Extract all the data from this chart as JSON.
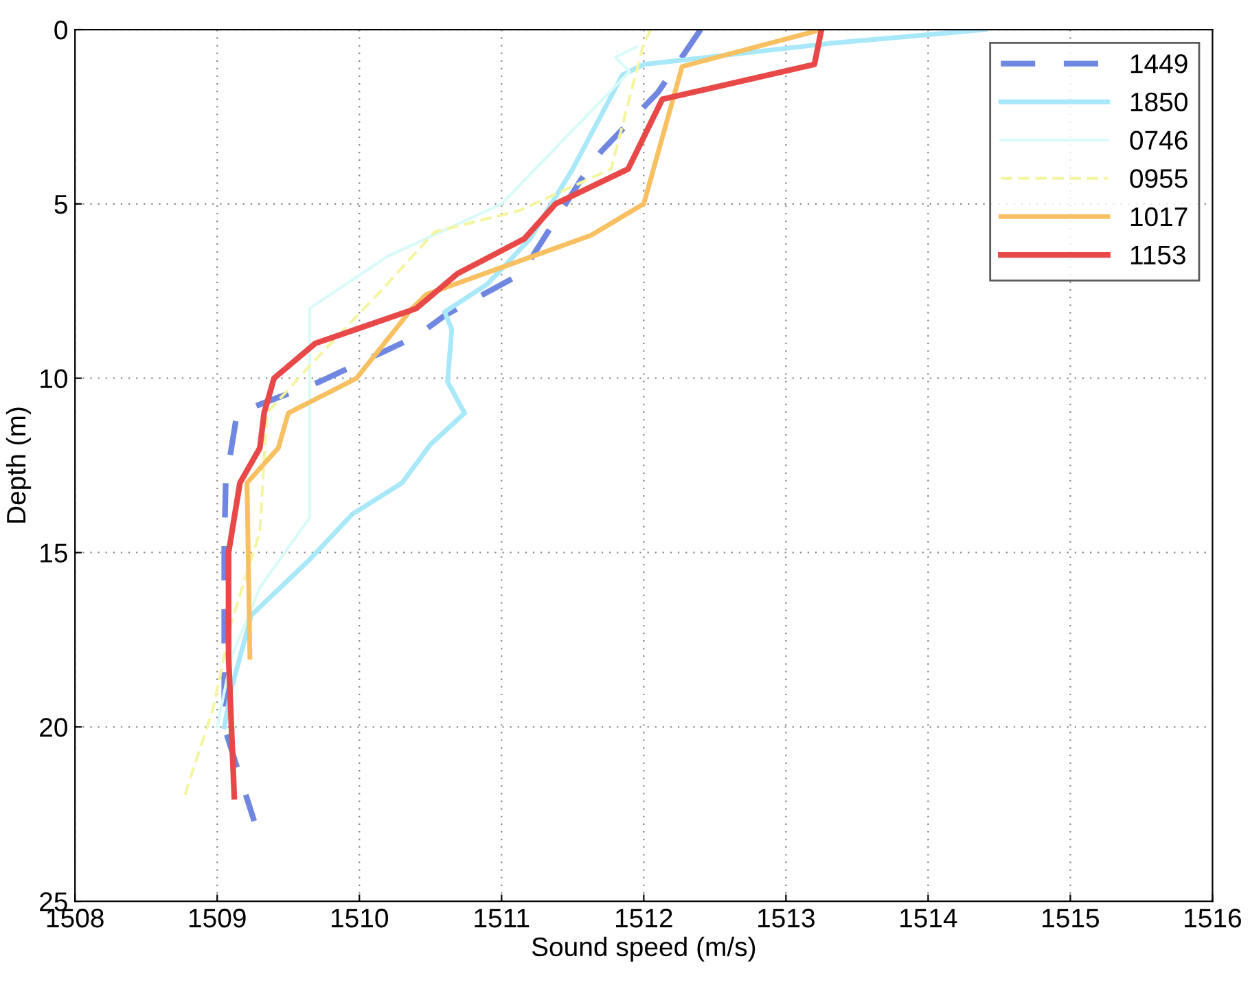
{
  "chart_data": {
    "type": "line",
    "xlabel": "Sound speed (m/s)",
    "ylabel": "Depth (m)",
    "xlim": [
      1508,
      1516
    ],
    "xticks": [
      1508,
      1509,
      1510,
      1511,
      1512,
      1513,
      1514,
      1515,
      1516
    ],
    "ylim": [
      25,
      0
    ],
    "yticks": [
      0,
      5,
      10,
      15,
      20,
      25
    ],
    "grid": true,
    "legend": "top right",
    "marker": "none",
    "series": [
      {
        "name": "1449",
        "color": "#6f87e0",
        "line_style": "dashed",
        "x": [
          1512.4,
          1512.1,
          1511.7,
          1511.56,
          1511.14,
          1510.6,
          1510.4,
          1509.72,
          1509.14,
          1509.06,
          1509.05,
          1509.05,
          1509.05,
          1509.26
        ],
        "values": [
          0,
          1.8,
          3.5,
          4.3,
          7,
          8.2,
          8.8,
          10.1,
          11,
          13,
          14.8,
          18,
          20,
          22.7
        ]
      },
      {
        "name": "1850",
        "color": "#a8e8f8",
        "line_style": "solid",
        "x": [
          1514.4,
          1513.3,
          1512.0,
          1511.85,
          1511.5,
          1511.2,
          1510.9,
          1510.6,
          1510.65,
          1510.62,
          1510.74,
          1510.5,
          1510.3,
          1509.95,
          1509.65,
          1509.24,
          1509.1,
          1509.05
        ],
        "values": [
          0,
          0.4,
          1.0,
          1.3,
          4,
          6,
          7.3,
          8.1,
          8.6,
          10.1,
          11,
          11.9,
          13,
          13.9,
          15.2,
          16.8,
          18.9,
          20
        ]
      },
      {
        "name": "0746",
        "color": "#d8fbf8",
        "line_style": "solid",
        "x": [
          1511.95,
          1511.8,
          1511.9,
          1511.0,
          1510.2,
          1509.65,
          1509.65,
          1509.3,
          1509.1,
          1509.0
        ],
        "values": [
          0.5,
          0.8,
          1.2,
          5,
          6.5,
          8,
          14,
          16,
          18,
          20
        ]
      },
      {
        "name": "0955",
        "color": "#f4f5a0",
        "line_style": "dashed",
        "x": [
          1512.05,
          1512.0,
          1511.77,
          1511.12,
          1510.53,
          1510.15,
          1509.66,
          1509.35,
          1509.3,
          1509.1,
          1508.97,
          1508.8,
          1508.77
        ],
        "values": [
          0,
          0.4,
          4,
          5.2,
          5.8,
          7.5,
          9.6,
          11,
          14.4,
          17,
          19.5,
          21.6,
          22
        ]
      },
      {
        "name": "1017",
        "color": "#f8c060",
        "line_style": "solid",
        "x": [
          1513.25,
          1512.27,
          1512.0,
          1511.63,
          1510.47,
          1510.37,
          1509.98,
          1509.5,
          1509.43,
          1509.21,
          1509.23
        ],
        "values": [
          0,
          1.06,
          5,
          5.9,
          7.6,
          8,
          10,
          11,
          12,
          13,
          18
        ]
      },
      {
        "name": "1153",
        "color": "#e84848",
        "line_style": "solid",
        "x": [
          1513.25,
          1513.2,
          1512.13,
          1511.89,
          1511.38,
          1511.16,
          1510.69,
          1510.4,
          1509.69,
          1509.4,
          1509.33,
          1509.3,
          1509.16,
          1509.12,
          1509.08,
          1509.08,
          1509.1,
          1509.12
        ],
        "values": [
          0,
          1,
          2,
          4,
          5,
          6,
          7,
          8,
          9,
          10,
          11,
          12,
          13,
          14,
          15,
          18,
          20,
          22
        ]
      }
    ]
  }
}
